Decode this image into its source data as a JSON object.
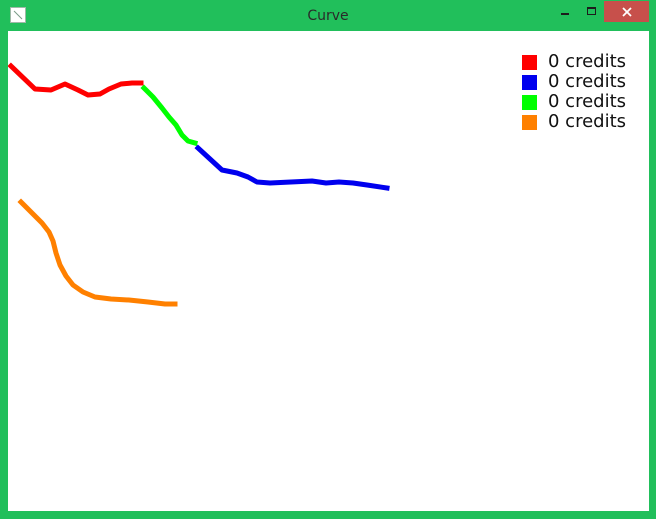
{
  "window": {
    "title": "Curve",
    "frame_color": "#21bf5b",
    "close_color": "#c7504b"
  },
  "icons": {
    "app": "app-icon",
    "minimize": "minimize-icon",
    "maximize": "maximize-icon",
    "close": "close-icon"
  },
  "legend": [
    {
      "color": "#ff0000",
      "label": "0 credits"
    },
    {
      "color": "#0000ee",
      "label": "0 credits"
    },
    {
      "color": "#00ff00",
      "label": "0 credits"
    },
    {
      "color": "#ff8000",
      "label": "0 credits"
    }
  ],
  "curves": [
    {
      "name": "red-curve",
      "color": "#ff0000",
      "points": [
        [
          3,
          35
        ],
        [
          27,
          58
        ],
        [
          43,
          59
        ],
        [
          57,
          53
        ],
        [
          70,
          59
        ],
        [
          80,
          64
        ],
        [
          92,
          63
        ],
        [
          101,
          58
        ],
        [
          113,
          53
        ],
        [
          124,
          52
        ],
        [
          133,
          52
        ]
      ]
    },
    {
      "name": "green-curve",
      "color": "#00ff00",
      "points": [
        [
          136,
          57
        ],
        [
          145,
          66
        ],
        [
          154,
          77
        ],
        [
          161,
          86
        ],
        [
          168,
          94
        ],
        [
          174,
          104
        ],
        [
          180,
          110
        ],
        [
          187,
          112
        ]
      ]
    },
    {
      "name": "blue-curve",
      "color": "#0000ee",
      "points": [
        [
          190,
          117
        ],
        [
          202,
          128
        ],
        [
          214,
          139
        ],
        [
          229,
          142
        ],
        [
          240,
          146
        ],
        [
          249,
          151
        ],
        [
          262,
          152
        ],
        [
          283,
          151
        ],
        [
          304,
          150
        ],
        [
          318,
          152
        ],
        [
          331,
          151
        ],
        [
          345,
          152
        ],
        [
          359,
          154
        ],
        [
          379,
          157
        ]
      ]
    },
    {
      "name": "orange-curve",
      "color": "#ff8000",
      "points": [
        [
          13,
          171
        ],
        [
          24,
          182
        ],
        [
          34,
          192
        ],
        [
          41,
          201
        ],
        [
          45,
          210
        ],
        [
          48,
          222
        ],
        [
          52,
          234
        ],
        [
          58,
          245
        ],
        [
          65,
          254
        ],
        [
          75,
          261
        ],
        [
          87,
          266
        ],
        [
          103,
          268
        ],
        [
          121,
          269
        ],
        [
          140,
          271
        ],
        [
          157,
          273
        ],
        [
          167,
          273
        ]
      ]
    }
  ]
}
